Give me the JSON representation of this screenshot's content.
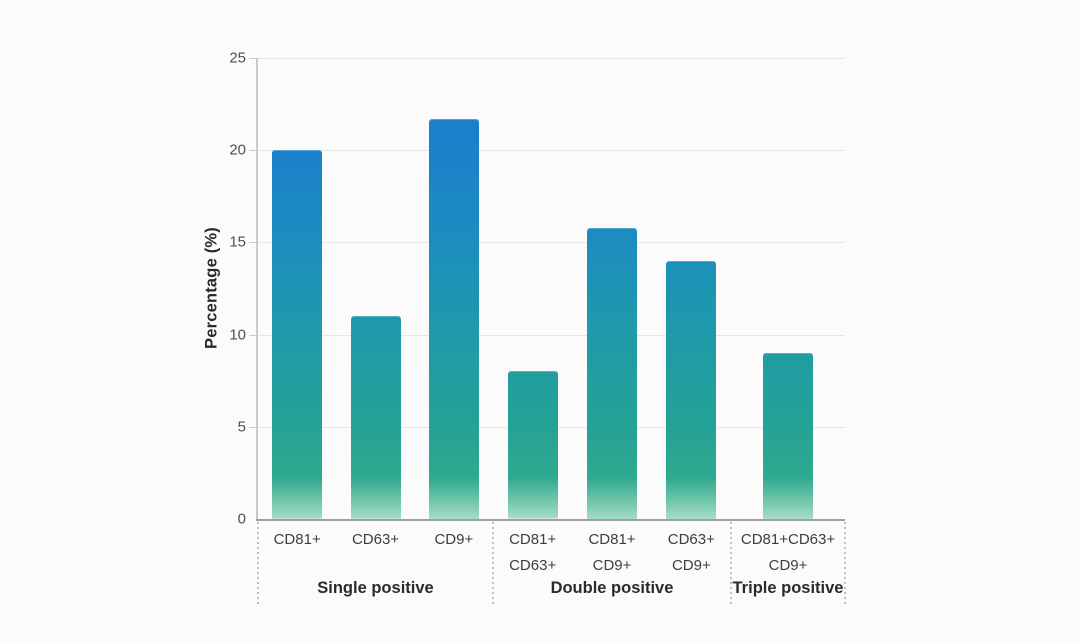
{
  "chart_data": {
    "type": "bar",
    "title": "",
    "ylabel": "Percentage (%)",
    "xlabel": "",
    "ylim": [
      0,
      25
    ],
    "yticks": [
      0,
      5,
      10,
      15,
      20,
      25
    ],
    "grid": true,
    "legend": false,
    "groups": [
      {
        "label": "Single positive",
        "bars": [
          {
            "label_lines": [
              "CD81+"
            ],
            "value": 20
          },
          {
            "label_lines": [
              "CD63+"
            ],
            "value": 11
          },
          {
            "label_lines": [
              "CD9+"
            ],
            "value": 21.7
          }
        ]
      },
      {
        "label": "Double positive",
        "bars": [
          {
            "label_lines": [
              "CD81+",
              "CD63+"
            ],
            "value": 8
          },
          {
            "label_lines": [
              "CD81+",
              "CD9+"
            ],
            "value": 15.8
          },
          {
            "label_lines": [
              "CD63+",
              "CD9+"
            ],
            "value": 14
          }
        ]
      },
      {
        "label": "Triple positive",
        "bars": [
          {
            "label_lines": [
              "CD81+CD63+",
              "CD9+"
            ],
            "value": 9
          }
        ]
      }
    ],
    "colors": {
      "background": "#fbfbfb",
      "bar_gradient_colors": [
        "#a9dcc8",
        "#7ccbb0",
        "#2fa98f",
        "#25a295",
        "#1f9aa8",
        "#1c8ebe",
        "#1b81ca",
        "#1a7cd1"
      ],
      "bar_gradient_stops_pct": [
        0,
        3,
        9,
        20,
        40,
        60,
        80,
        100
      ]
    }
  }
}
